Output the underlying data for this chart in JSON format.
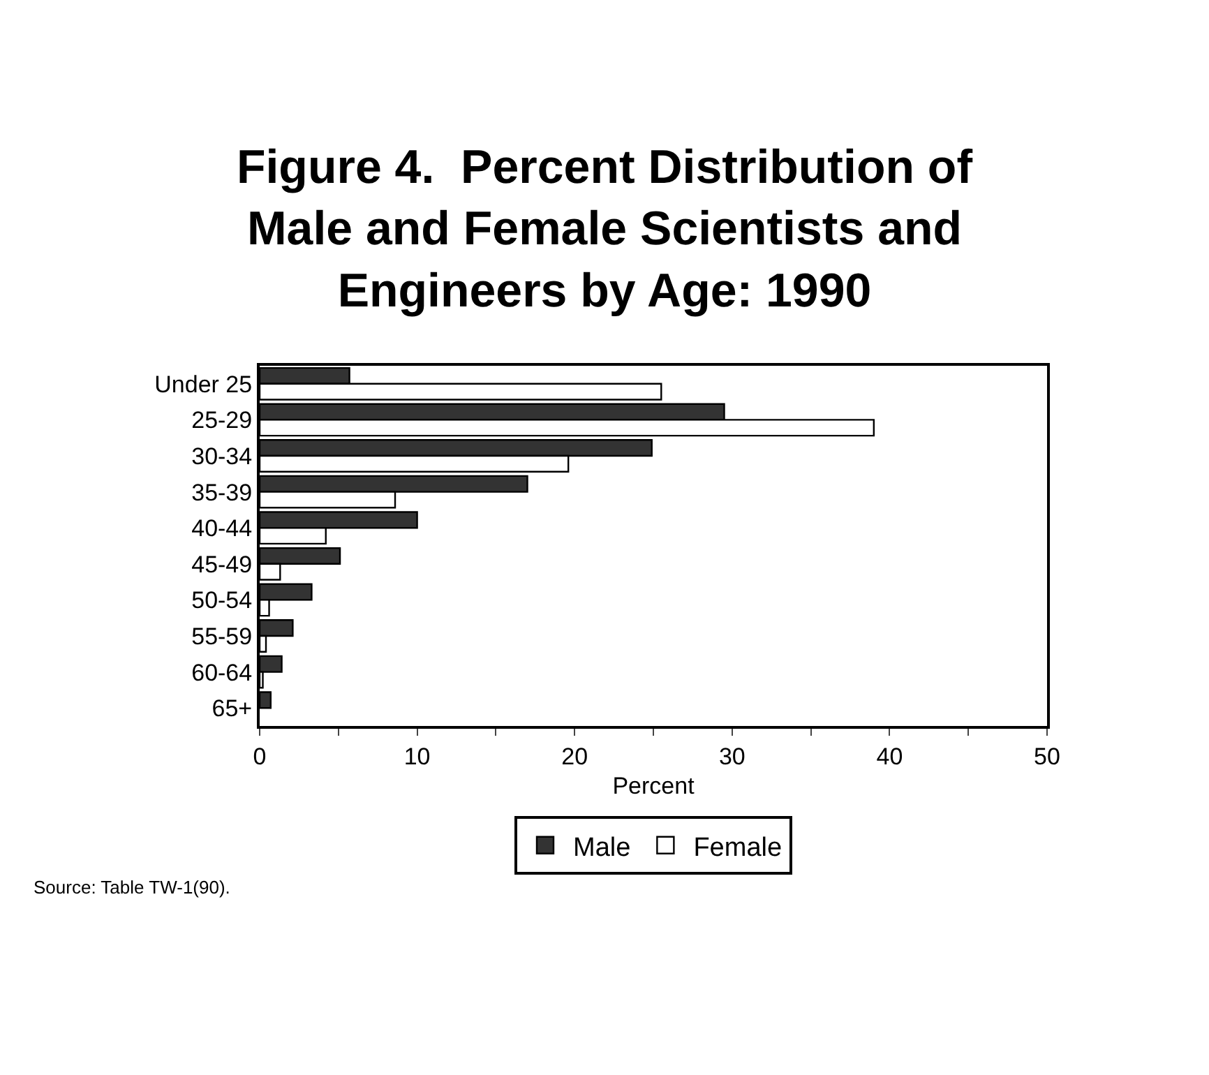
{
  "chart_data": {
    "type": "bar",
    "orientation": "horizontal",
    "title": "Figure 4.  Percent Distribution of\nMale and Female Scientists and\nEngineers by Age: 1990",
    "xlabel": "Percent",
    "categories": [
      "Under 25",
      "25-29",
      "30-34",
      "35-39",
      "40-44",
      "45-49",
      "50-54",
      "55-59",
      "60-64",
      "65+"
    ],
    "series": [
      {
        "name": "Male",
        "color": "#333333",
        "values": [
          5.7,
          29.5,
          24.9,
          17.0,
          10.0,
          5.1,
          3.3,
          2.1,
          1.4,
          0.7
        ]
      },
      {
        "name": "Female",
        "color": "#ffffff",
        "values": [
          25.5,
          39.0,
          19.6,
          8.6,
          4.2,
          1.3,
          0.6,
          0.4,
          0.2,
          null
        ]
      }
    ],
    "xlim": [
      0,
      50
    ],
    "xticks": [
      0,
      {
        "value": 5,
        "label": null
      },
      10,
      {
        "value": 15,
        "label": null
      },
      20,
      {
        "value": 25,
        "label": null
      },
      30,
      {
        "value": 35,
        "label": null
      },
      40,
      {
        "value": 45,
        "label": null
      },
      50
    ],
    "legend": "bottom",
    "annotations": [
      "Source: Table TW-1(90)."
    ]
  }
}
